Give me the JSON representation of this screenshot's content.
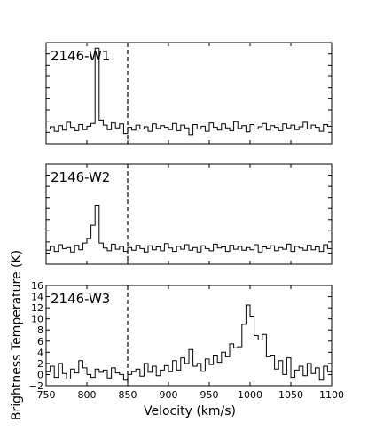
{
  "chart_data": {
    "type": "line",
    "drawstyle": "steps",
    "xlabel": "Velocity (km/s)",
    "ylabel": "Brightness Temperature (K)",
    "xlim": [
      750,
      1100
    ],
    "xticks": [
      750,
      800,
      850,
      900,
      950,
      1000,
      1050,
      1100
    ],
    "reference_line_x": 850,
    "panels": [
      {
        "label": "2146-W1",
        "ylim": [
          -2,
          16
        ],
        "yticks_labeled": false,
        "x": [
          750,
          755,
          760,
          765,
          770,
          775,
          780,
          785,
          790,
          795,
          800,
          805,
          810,
          815,
          820,
          825,
          830,
          835,
          840,
          845,
          850,
          855,
          860,
          865,
          870,
          875,
          880,
          885,
          890,
          895,
          900,
          905,
          910,
          915,
          920,
          925,
          930,
          935,
          940,
          945,
          950,
          955,
          960,
          965,
          970,
          975,
          980,
          985,
          990,
          995,
          1000,
          1005,
          1010,
          1015,
          1020,
          1025,
          1030,
          1035,
          1040,
          1045,
          1050,
          1055,
          1060,
          1065,
          1070,
          1075,
          1080,
          1085,
          1090,
          1095
        ],
        "y": [
          0.6,
          1.0,
          0.2,
          1.2,
          0.4,
          1.8,
          0.9,
          0.3,
          1.4,
          0.5,
          1.1,
          1.6,
          15.0,
          2.2,
          1.3,
          0.5,
          1.7,
          0.8,
          1.5,
          -0.2,
          0.9,
          0.4,
          1.3,
          0.6,
          1.0,
          0.2,
          1.5,
          0.7,
          1.2,
          0.9,
          0.5,
          1.6,
          0.3,
          1.3,
          0.8,
          -0.4,
          1.4,
          0.6,
          1.1,
          0.2,
          1.7,
          0.9,
          0.4,
          1.5,
          0.8,
          0.3,
          1.9,
          0.7,
          1.2,
          0.1,
          1.4,
          0.6,
          1.0,
          1.6,
          0.4,
          1.2,
          0.9,
          0.3,
          1.5,
          0.8,
          1.3,
          0.5,
          1.0,
          1.8,
          0.6,
          1.3,
          0.9,
          0.2,
          1.4,
          1.1
        ]
      },
      {
        "label": "2146-W2",
        "ylim": [
          -2,
          16
        ],
        "yticks_labeled": false,
        "x": [
          750,
          755,
          760,
          765,
          770,
          775,
          780,
          785,
          790,
          795,
          800,
          805,
          810,
          815,
          820,
          825,
          830,
          835,
          840,
          845,
          850,
          855,
          860,
          865,
          870,
          875,
          880,
          885,
          890,
          895,
          900,
          905,
          910,
          915,
          920,
          925,
          930,
          935,
          940,
          945,
          950,
          955,
          960,
          965,
          970,
          975,
          980,
          985,
          990,
          995,
          1000,
          1005,
          1010,
          1015,
          1020,
          1025,
          1030,
          1035,
          1040,
          1045,
          1050,
          1055,
          1060,
          1065,
          1070,
          1075,
          1080,
          1085,
          1090,
          1095
        ],
        "y": [
          0.5,
          1.2,
          0.3,
          1.5,
          0.8,
          1.0,
          0.2,
          1.4,
          0.6,
          1.8,
          2.6,
          5.0,
          8.6,
          1.8,
          0.9,
          0.4,
          1.6,
          0.7,
          1.2,
          0.3,
          1.0,
          0.5,
          1.4,
          0.8,
          0.2,
          1.3,
          0.6,
          1.1,
          0.4,
          1.7,
          0.9,
          0.3,
          1.2,
          0.7,
          1.5,
          0.5,
          1.0,
          0.2,
          1.3,
          0.8,
          0.4,
          1.6,
          0.9,
          1.1,
          0.3,
          1.4,
          0.7,
          1.2,
          0.5,
          1.0,
          0.6,
          1.5,
          0.2,
          1.1,
          0.8,
          1.3,
          0.4,
          1.0,
          0.7,
          1.6,
          0.3,
          1.2,
          0.9,
          0.5,
          1.4,
          0.6,
          1.1,
          0.3,
          1.5,
          0.8
        ]
      },
      {
        "label": "2146-W3",
        "ylim": [
          -2,
          16
        ],
        "yticks": [
          -2,
          0,
          2,
          4,
          6,
          8,
          10,
          12,
          14,
          16
        ],
        "yticks_labeled": true,
        "x": [
          750,
          755,
          760,
          765,
          770,
          775,
          780,
          785,
          790,
          795,
          800,
          805,
          810,
          815,
          820,
          825,
          830,
          835,
          840,
          845,
          850,
          855,
          860,
          865,
          870,
          875,
          880,
          885,
          890,
          895,
          900,
          905,
          910,
          915,
          920,
          925,
          930,
          935,
          940,
          945,
          950,
          955,
          960,
          965,
          970,
          975,
          980,
          985,
          990,
          995,
          1000,
          1005,
          1010,
          1015,
          1020,
          1025,
          1030,
          1035,
          1040,
          1045,
          1050,
          1055,
          1060,
          1065,
          1070,
          1075,
          1080,
          1085,
          1090,
          1095
        ],
        "y": [
          0.5,
          1.5,
          -0.5,
          2.0,
          0.2,
          -0.8,
          1.0,
          0.3,
          2.5,
          1.2,
          0.0,
          -0.5,
          1.0,
          0.4,
          0.8,
          -0.6,
          1.2,
          0.3,
          0.0,
          -1.0,
          0.0,
          0.5,
          1.0,
          -0.3,
          2.0,
          0.4,
          1.5,
          -0.2,
          0.8,
          1.6,
          0.5,
          2.5,
          0.8,
          3.0,
          2.0,
          4.5,
          1.5,
          2.0,
          0.6,
          2.8,
          1.8,
          3.5,
          2.2,
          4.0,
          3.2,
          5.5,
          4.8,
          5.0,
          9.0,
          12.5,
          10.5,
          7.0,
          6.2,
          7.2,
          3.2,
          3.5,
          1.0,
          2.5,
          0.0,
          3.0,
          -0.5,
          0.8,
          1.5,
          -0.2,
          2.0,
          0.2,
          1.2,
          -1.0,
          1.5,
          0.5
        ]
      }
    ]
  }
}
